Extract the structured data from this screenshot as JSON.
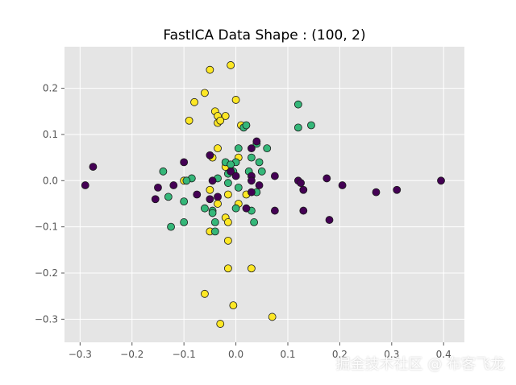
{
  "chart_data": {
    "type": "scatter",
    "title": "FastICA Data Shape : (100, 2)",
    "xlabel": "",
    "ylabel": "",
    "xlim": [
      -0.33,
      0.44
    ],
    "ylim": [
      -0.35,
      0.29
    ],
    "xticks": [
      -0.3,
      -0.2,
      -0.1,
      0.0,
      0.1,
      0.2,
      0.3,
      0.4
    ],
    "xtick_labels": [
      "−0.3",
      "−0.2",
      "−0.1",
      "0.0",
      "0.1",
      "0.2",
      "0.3",
      "0.4"
    ],
    "yticks": [
      -0.3,
      -0.2,
      -0.1,
      0.0,
      0.1,
      0.2
    ],
    "ytick_labels": [
      "−0.3",
      "−0.2",
      "−0.1",
      "0.0",
      "0.1",
      "0.2"
    ],
    "grid": true,
    "legend": "none",
    "background_color": "#e5e5e5",
    "grid_color": "#ffffff",
    "series": [
      {
        "color": "#fde725",
        "points": [
          [
            -0.05,
            0.24
          ],
          [
            -0.01,
            0.25
          ],
          [
            -0.06,
            0.19
          ],
          [
            -0.08,
            0.17
          ],
          [
            0.0,
            0.175
          ],
          [
            -0.04,
            0.15
          ],
          [
            -0.02,
            0.14
          ],
          [
            -0.035,
            0.14
          ],
          [
            -0.035,
            0.125
          ],
          [
            -0.03,
            0.13
          ],
          [
            -0.09,
            0.13
          ],
          [
            0.01,
            0.12
          ],
          [
            -0.035,
            0.07
          ],
          [
            -0.045,
            0.05
          ],
          [
            0.005,
            0.05
          ],
          [
            -0.02,
            0.03
          ],
          [
            -0.1,
            0.0
          ],
          [
            -0.05,
            -0.02
          ],
          [
            -0.015,
            -0.03
          ],
          [
            0.02,
            -0.03
          ],
          [
            -0.035,
            -0.05
          ],
          [
            0.005,
            -0.05
          ],
          [
            -0.02,
            -0.08
          ],
          [
            -0.015,
            -0.09
          ],
          [
            -0.05,
            -0.11
          ],
          [
            -0.015,
            -0.13
          ],
          [
            -0.015,
            -0.19
          ],
          [
            0.03,
            -0.19
          ],
          [
            -0.06,
            -0.245
          ],
          [
            -0.005,
            -0.27
          ],
          [
            0.07,
            -0.295
          ],
          [
            -0.03,
            -0.31
          ]
        ]
      },
      {
        "color": "#35b779",
        "points": [
          [
            0.12,
            0.165
          ],
          [
            0.145,
            0.12
          ],
          [
            0.12,
            0.115
          ],
          [
            0.015,
            0.115
          ],
          [
            0.02,
            0.12
          ],
          [
            0.04,
            0.08
          ],
          [
            0.06,
            0.07
          ],
          [
            0.005,
            0.07
          ],
          [
            -0.02,
            0.04
          ],
          [
            0.0,
            0.04
          ],
          [
            0.03,
            0.05
          ],
          [
            -0.01,
            0.035
          ],
          [
            0.045,
            0.04
          ],
          [
            0.05,
            0.02
          ],
          [
            0.025,
            0.02
          ],
          [
            -0.005,
            0.02
          ],
          [
            -0.015,
            0.015
          ],
          [
            -0.14,
            0.02
          ],
          [
            -0.085,
            0.005
          ],
          [
            -0.095,
            0.0
          ],
          [
            -0.035,
            0.005
          ],
          [
            -0.015,
            -0.005
          ],
          [
            0.005,
            -0.015
          ],
          [
            0.04,
            -0.025
          ],
          [
            -0.13,
            -0.035
          ],
          [
            -0.1,
            -0.045
          ],
          [
            -0.06,
            -0.06
          ],
          [
            -0.045,
            -0.065
          ],
          [
            -0.045,
            -0.07
          ],
          [
            0.0,
            -0.06
          ],
          [
            -0.04,
            -0.09
          ],
          [
            0.035,
            -0.09
          ],
          [
            -0.125,
            -0.1
          ],
          [
            -0.1,
            -0.09
          ],
          [
            -0.04,
            -0.11
          ],
          [
            0.03,
            -0.065
          ]
        ]
      },
      {
        "color": "#440154",
        "points": [
          [
            -0.29,
            -0.01
          ],
          [
            -0.275,
            0.03
          ],
          [
            0.04,
            0.085
          ],
          [
            0.03,
            0.07
          ],
          [
            -0.05,
            0.055
          ],
          [
            -0.1,
            0.04
          ],
          [
            -0.01,
            0.02
          ],
          [
            0.075,
            0.01
          ],
          [
            0.03,
            0.01
          ],
          [
            0.0,
            0.01
          ],
          [
            0.03,
            0.0
          ],
          [
            0.045,
            -0.01
          ],
          [
            -0.045,
            0.0
          ],
          [
            -0.12,
            -0.01
          ],
          [
            -0.15,
            -0.015
          ],
          [
            -0.075,
            -0.03
          ],
          [
            -0.035,
            -0.035
          ],
          [
            -0.05,
            -0.04
          ],
          [
            -0.155,
            -0.04
          ],
          [
            0.03,
            -0.025
          ],
          [
            0.02,
            -0.06
          ],
          [
            0.12,
            0.0
          ],
          [
            0.125,
            -0.005
          ],
          [
            0.13,
            -0.02
          ],
          [
            0.175,
            0.005
          ],
          [
            0.205,
            -0.01
          ],
          [
            0.27,
            -0.025
          ],
          [
            0.31,
            -0.02
          ],
          [
            0.395,
            0.0
          ],
          [
            0.075,
            -0.065
          ],
          [
            0.13,
            -0.065
          ],
          [
            0.18,
            -0.085
          ]
        ]
      }
    ]
  },
  "watermark": "掘金技术社区 @ 布客飞龙"
}
